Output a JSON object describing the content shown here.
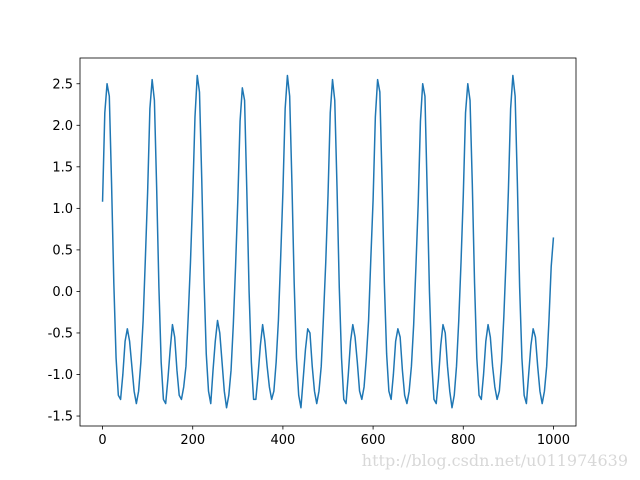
{
  "chart_data": {
    "type": "line",
    "color": "#1f77b4",
    "x": [
      0,
      5,
      10,
      15,
      20,
      25,
      30,
      35,
      40,
      45,
      50,
      55,
      60,
      65,
      70,
      75,
      80,
      85,
      90,
      95,
      100,
      105,
      110,
      115,
      120,
      125,
      130,
      135,
      140,
      145,
      150,
      155,
      160,
      165,
      170,
      175,
      180,
      185,
      190,
      195,
      200,
      205,
      210,
      215,
      220,
      225,
      230,
      235,
      240,
      245,
      250,
      255,
      260,
      265,
      270,
      275,
      280,
      285,
      290,
      295,
      300,
      305,
      310,
      315,
      320,
      325,
      330,
      335,
      340,
      345,
      350,
      355,
      360,
      365,
      370,
      375,
      380,
      385,
      390,
      395,
      400,
      405,
      410,
      415,
      420,
      425,
      430,
      435,
      440,
      445,
      450,
      455,
      460,
      465,
      470,
      475,
      480,
      485,
      490,
      495,
      500,
      505,
      510,
      515,
      520,
      525,
      530,
      535,
      540,
      545,
      550,
      555,
      560,
      565,
      570,
      575,
      580,
      585,
      590,
      595,
      600,
      605,
      610,
      615,
      620,
      625,
      630,
      635,
      640,
      645,
      650,
      655,
      660,
      665,
      670,
      675,
      680,
      685,
      690,
      695,
      700,
      705,
      710,
      715,
      720,
      725,
      730,
      735,
      740,
      745,
      750,
      755,
      760,
      765,
      770,
      775,
      780,
      785,
      790,
      795,
      800,
      805,
      810,
      815,
      820,
      825,
      830,
      835,
      840,
      845,
      850,
      855,
      860,
      865,
      870,
      875,
      880,
      885,
      890,
      895,
      900,
      905,
      910,
      915,
      920,
      925,
      930,
      935,
      940,
      945,
      950,
      955,
      960,
      965,
      970,
      975,
      980,
      985,
      990,
      995,
      1000
    ],
    "values": [
      1.08,
      2.15,
      2.5,
      2.35,
      1.3,
      0.1,
      -0.8,
      -1.25,
      -1.3,
      -1.0,
      -0.6,
      -0.45,
      -0.6,
      -0.9,
      -1.2,
      -1.35,
      -1.2,
      -0.85,
      -0.35,
      0.4,
      1.2,
      2.2,
      2.55,
      2.3,
      1.25,
      0.05,
      -0.85,
      -1.3,
      -1.35,
      -1.05,
      -0.7,
      -0.4,
      -0.55,
      -0.95,
      -1.25,
      -1.3,
      -1.15,
      -0.9,
      -0.3,
      0.35,
      1.15,
      2.1,
      2.6,
      2.4,
      1.35,
      0.15,
      -0.75,
      -1.2,
      -1.35,
      -0.95,
      -0.6,
      -0.35,
      -0.5,
      -0.85,
      -1.2,
      -1.4,
      -1.25,
      -0.95,
      -0.4,
      0.3,
      1.1,
      2.05,
      2.45,
      2.3,
      1.2,
      0.0,
      -0.85,
      -1.3,
      -1.3,
      -1.0,
      -0.65,
      -0.4,
      -0.6,
      -0.9,
      -1.15,
      -1.3,
      -1.2,
      -0.85,
      -0.35,
      0.4,
      1.2,
      2.2,
      2.6,
      2.35,
      1.3,
      0.1,
      -0.8,
      -1.25,
      -1.4,
      -1.05,
      -0.7,
      -0.45,
      -0.5,
      -0.9,
      -1.2,
      -1.35,
      -1.2,
      -0.9,
      -0.3,
      0.35,
      1.15,
      2.15,
      2.55,
      2.3,
      1.25,
      0.05,
      -0.8,
      -1.3,
      -1.35,
      -1.0,
      -0.6,
      -0.4,
      -0.55,
      -0.85,
      -1.2,
      -1.3,
      -1.15,
      -0.8,
      -0.35,
      0.4,
      1.1,
      2.1,
      2.55,
      2.4,
      1.3,
      0.1,
      -0.75,
      -1.2,
      -1.3,
      -1.0,
      -0.6,
      -0.45,
      -0.55,
      -0.95,
      -1.25,
      -1.35,
      -1.2,
      -0.9,
      -0.4,
      0.3,
      1.05,
      2.05,
      2.5,
      2.35,
      1.2,
      0.0,
      -0.85,
      -1.3,
      -1.35,
      -1.05,
      -0.65,
      -0.4,
      -0.5,
      -0.9,
      -1.2,
      -1.4,
      -1.25,
      -0.9,
      -0.35,
      0.35,
      1.15,
      2.15,
      2.5,
      2.3,
      1.3,
      0.1,
      -0.8,
      -1.25,
      -1.3,
      -1.0,
      -0.6,
      -0.4,
      -0.55,
      -0.9,
      -1.15,
      -1.3,
      -1.2,
      -0.85,
      -0.3,
      0.4,
      1.2,
      2.2,
      2.6,
      2.35,
      1.3,
      0.05,
      -0.8,
      -1.25,
      -1.35,
      -1.0,
      -0.65,
      -0.45,
      -0.55,
      -0.9,
      -1.2,
      -1.35,
      -1.2,
      -0.9,
      -0.35,
      0.3,
      0.65
    ],
    "xlim": [
      -50,
      1050
    ],
    "ylim": [
      -1.62,
      2.81
    ],
    "xticks": [
      0,
      200,
      400,
      600,
      800,
      1000
    ],
    "yticks": [
      -1.5,
      {
        "value": -1,
        "label": "-1.0"
      },
      -0.5,
      {
        "value": 0,
        "label": "0.0"
      },
      0.5,
      {
        "value": 1,
        "label": "1.0"
      },
      1.5,
      {
        "value": 2,
        "label": "2.0"
      },
      2.5
    ],
    "watermark": "http://blog.csdn.net/u011974639"
  }
}
